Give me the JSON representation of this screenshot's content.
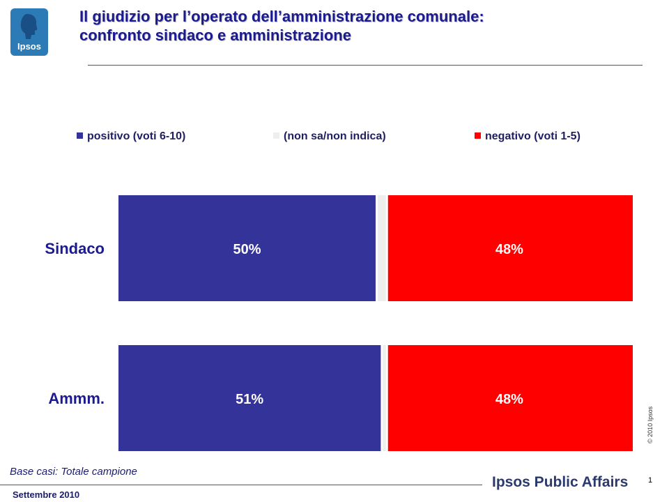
{
  "header": {
    "logo_text": "Ipsos",
    "title_line1": "Il giudizio per l’operato dell’amministrazione comunale:",
    "title_line2": "confronto sindaco e amministrazione"
  },
  "chart_data": {
    "type": "bar",
    "orientation": "horizontal",
    "stacked": true,
    "categories": [
      "Sindaco",
      "Ammm."
    ],
    "series": [
      {
        "name": "positivo (voti 6-10)",
        "values": [
          50,
          51
        ],
        "color": "#333399"
      },
      {
        "name": "(non sa/non indica)",
        "values": [
          2,
          1
        ],
        "color": "#eeeeee"
      },
      {
        "name": "negativo (voti 1-5)",
        "values": [
          48,
          48
        ],
        "color": "#ff0000"
      }
    ],
    "data_labels": [
      [
        "50%",
        "",
        "48%"
      ],
      [
        "51%",
        "",
        "48%"
      ]
    ],
    "xlim": [
      0,
      100
    ],
    "legend_position": "top",
    "grid": false
  },
  "footer": {
    "base_note": "Base casi: Totale campione",
    "date": "Settembre 2010",
    "brand": "Ipsos Public Affairs",
    "page_number": "1",
    "copyright": "© 2010 Ipsos"
  }
}
